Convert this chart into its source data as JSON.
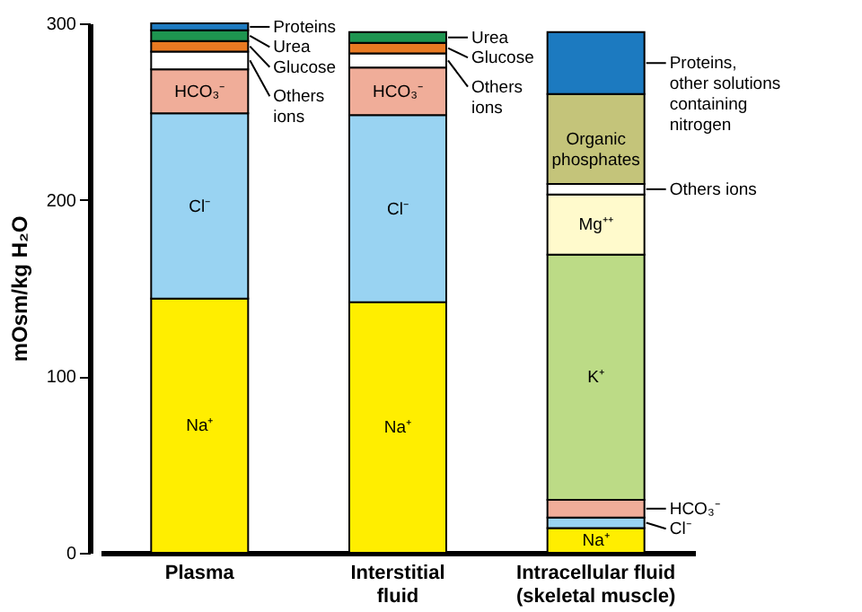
{
  "chart_data": {
    "type": "bar",
    "stacked": true,
    "categories": [
      "Plasma",
      "Interstitial\nfluid",
      "Intracellular fluid\n(skeletal muscle)"
    ],
    "ylabel": "mOsm/kg H₂O",
    "ylim": [
      0,
      300
    ],
    "yticks": [
      0,
      100,
      200,
      300
    ],
    "grid": false,
    "legend": "right",
    "series": [
      {
        "name": "Na⁺",
        "color": "#ffee00",
        "values": [
          144,
          142,
          14
        ]
      },
      {
        "name": "Cl⁻",
        "color": "#99d3f2",
        "values": [
          105,
          106,
          6
        ]
      },
      {
        "name": "HCO₃⁻",
        "color": "#f0ad99",
        "values": [
          25,
          27,
          10
        ]
      },
      {
        "name": "K⁺",
        "color": "#bcdb86",
        "values": [
          null,
          null,
          139
        ]
      },
      {
        "name": "Mg⁺⁺",
        "color": "#fffacc",
        "values": [
          null,
          null,
          34
        ]
      },
      {
        "name": "Others ions",
        "color": "#ffffff",
        "values": [
          10,
          8,
          6
        ]
      },
      {
        "name": "Glucose",
        "color": "#e87a22",
        "values": [
          6,
          6,
          null
        ]
      },
      {
        "name": "Urea",
        "color": "#1e9550",
        "values": [
          6,
          6,
          null
        ]
      },
      {
        "name": "Organic\nphosphates",
        "color": "#c4c47a",
        "values": [
          null,
          null,
          51
        ]
      },
      {
        "name": "Proteins",
        "color": "#1c7ac0",
        "values": [
          4,
          null,
          null
        ]
      },
      {
        "name": "Proteins,\nother solutions\ncontaining\nnitrogen",
        "color": "#1c7ac0",
        "values": [
          null,
          null,
          35
        ]
      }
    ]
  }
}
